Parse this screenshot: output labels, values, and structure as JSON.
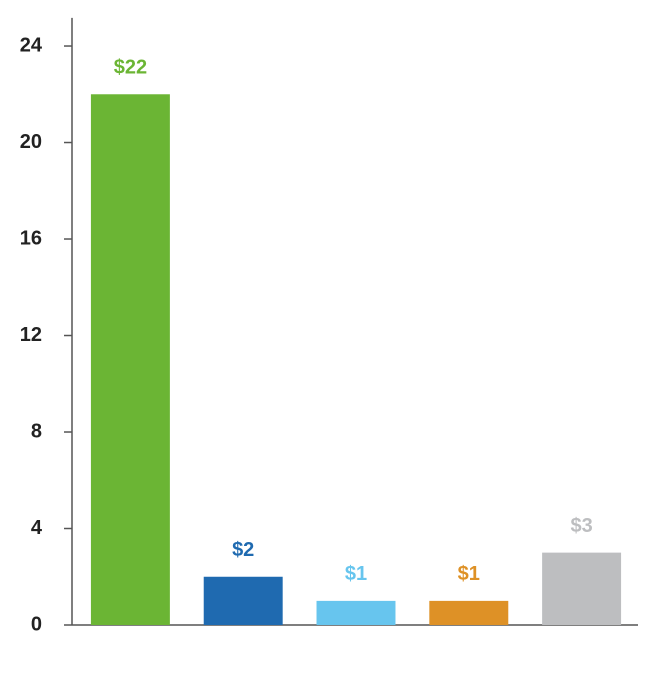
{
  "chart_data": {
    "type": "bar",
    "categories": [
      null,
      null,
      null,
      null,
      null
    ],
    "values": [
      22,
      2,
      1,
      1,
      3
    ],
    "value_labels": [
      "$22",
      "$2",
      "$1",
      "$1",
      "$3"
    ],
    "colors": [
      "#6bb534",
      "#1f6ab0",
      "#67c5ee",
      "#de9126",
      "#bdbec0"
    ],
    "ylim": [
      0,
      25
    ],
    "yticks": [
      0,
      4,
      8,
      12,
      16,
      20,
      24
    ],
    "grid": false
  }
}
